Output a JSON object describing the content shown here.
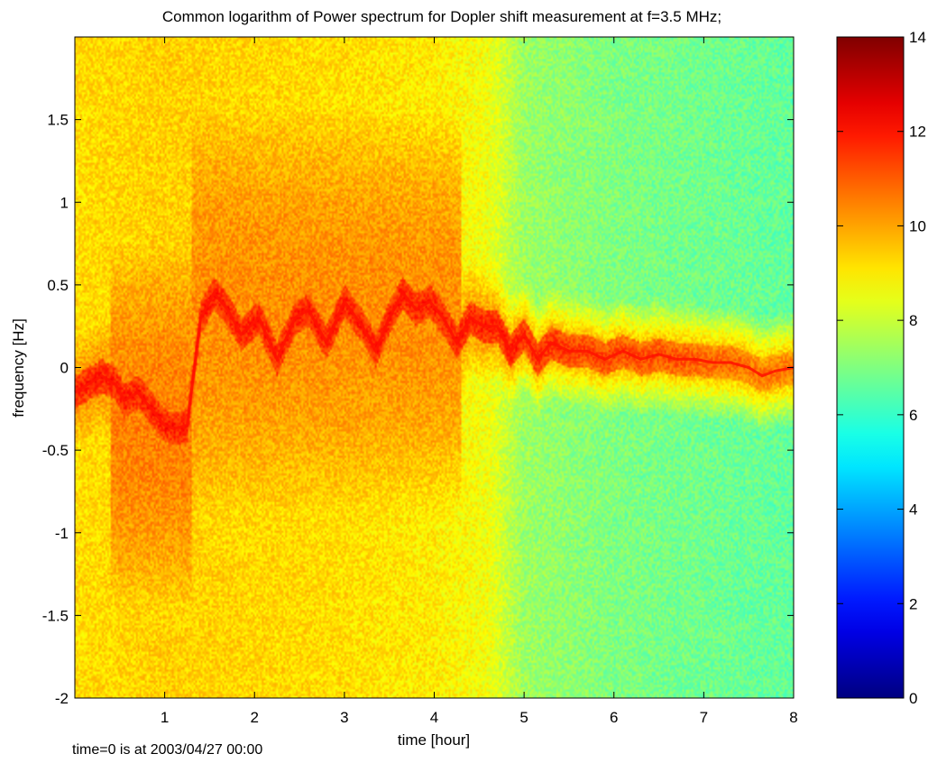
{
  "chart_data": {
    "type": "heatmap",
    "title": "Common logarithm of Power spectrum for Dopler shift measurement at f=3.5 MHz;",
    "xlabel": "time [hour]",
    "ylabel": "frequency [Hz]",
    "footnote": "time=0 is at 2003/04/27 00:00",
    "xlim": [
      0,
      8
    ],
    "ylim": [
      -2,
      2
    ],
    "xticks": [
      1,
      2,
      3,
      4,
      5,
      6,
      7,
      8
    ],
    "yticks": [
      -2,
      -1.5,
      -1,
      -0.5,
      0,
      0.5,
      1,
      1.5
    ],
    "colorbar": {
      "colormap": "jet",
      "range": [
        0,
        14
      ],
      "ticks": [
        0,
        2,
        4,
        6,
        8,
        10,
        12,
        14
      ]
    },
    "background_level": {
      "time": [
        0,
        1,
        2,
        3,
        4,
        4.6,
        5,
        6,
        7,
        8
      ],
      "value": [
        9.2,
        9.4,
        9.3,
        9.2,
        9.0,
        8.6,
        7.4,
        7.0,
        6.8,
        6.6
      ]
    },
    "doppler_trace": {
      "description_level": 12.0,
      "time": [
        0.0,
        0.15,
        0.3,
        0.45,
        0.55,
        0.7,
        0.85,
        1.0,
        1.1,
        1.25,
        1.4,
        1.55,
        1.7,
        1.85,
        2.05,
        2.25,
        2.45,
        2.6,
        2.8,
        3.0,
        3.2,
        3.35,
        3.5,
        3.65,
        3.8,
        3.95,
        4.1,
        4.25,
        4.4,
        4.55,
        4.7,
        4.85,
        5.0,
        5.15,
        5.3,
        5.5,
        5.7,
        5.9,
        6.1,
        6.3,
        6.5,
        6.7,
        6.9,
        7.1,
        7.3,
        7.5,
        7.65,
        7.8,
        8.0
      ],
      "frequency": [
        -0.15,
        -0.1,
        -0.05,
        -0.1,
        -0.2,
        -0.15,
        -0.25,
        -0.35,
        -0.37,
        -0.35,
        0.3,
        0.45,
        0.35,
        0.2,
        0.3,
        0.05,
        0.3,
        0.35,
        0.15,
        0.4,
        0.25,
        0.1,
        0.3,
        0.45,
        0.35,
        0.4,
        0.3,
        0.15,
        0.3,
        0.25,
        0.25,
        0.1,
        0.2,
        0.05,
        0.15,
        0.1,
        0.1,
        0.05,
        0.1,
        0.05,
        0.08,
        0.05,
        0.05,
        0.03,
        0.03,
        0.0,
        -0.05,
        -0.02,
        0.0
      ],
      "level": [
        12.0,
        12.0,
        12.0,
        12.0,
        12.0,
        12.0,
        12.0,
        12.0,
        12.0,
        12.0,
        12.0,
        12.0,
        12.0,
        12.0,
        12.0,
        12.0,
        12.0,
        12.0,
        12.0,
        12.0,
        12.0,
        12.0,
        12.0,
        12.0,
        12.0,
        12.0,
        12.0,
        12.0,
        12.0,
        12.0,
        12.0,
        12.0,
        11.8,
        11.8,
        11.8,
        11.6,
        11.5,
        11.5,
        11.4,
        11.4,
        11.3,
        11.3,
        11.2,
        11.0,
        11.0,
        10.8,
        10.8,
        10.8,
        10.8
      ]
    },
    "enhanced_regions": [
      {
        "time_start": 0.4,
        "time_end": 1.3,
        "freq_min": -1.2,
        "freq_max": 0.5,
        "level": 10.5
      },
      {
        "time_start": 1.3,
        "time_end": 4.3,
        "freq_min": -0.6,
        "freq_max": 1.3,
        "level": 10.3
      }
    ]
  }
}
